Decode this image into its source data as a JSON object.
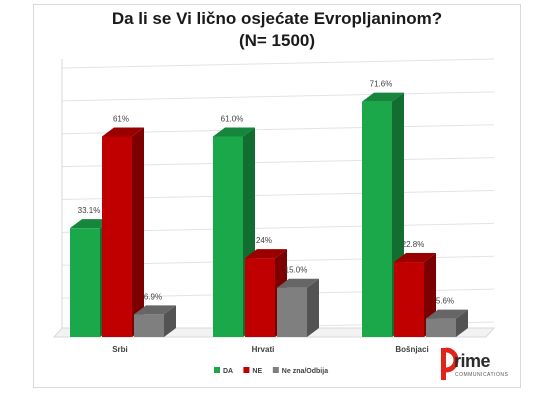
{
  "chart_data": {
    "type": "bar",
    "title_line1": "Da li se Vi lično osjećate Evropljaninom?",
    "title_line2": "(N= 1500)",
    "categories": [
      "Srbi",
      "Hrvati",
      "Bošnjaci"
    ],
    "series": [
      {
        "name": "DA",
        "color": "#1aa84a",
        "values": [
          33.1,
          61.0,
          71.6
        ],
        "labels": [
          "33.1%",
          "61.0%",
          "71.6%"
        ]
      },
      {
        "name": "NE",
        "color": "#c00000",
        "values": [
          61,
          24,
          22.8
        ],
        "labels": [
          "61%",
          "24%",
          "22.8%"
        ]
      },
      {
        "name": "Ne zna/Odbija",
        "color": "#7f7f7f",
        "values": [
          6.9,
          15.0,
          5.6
        ],
        "labels": [
          "6.9%",
          "15.0%",
          "5.6%"
        ]
      }
    ],
    "ylim": [
      0,
      80
    ],
    "grid": true,
    "legend_position": "bottom-center"
  },
  "logo": {
    "text": "rime",
    "sub": "COMMUNICATIONS",
    "color_accent": "#e2231a"
  }
}
